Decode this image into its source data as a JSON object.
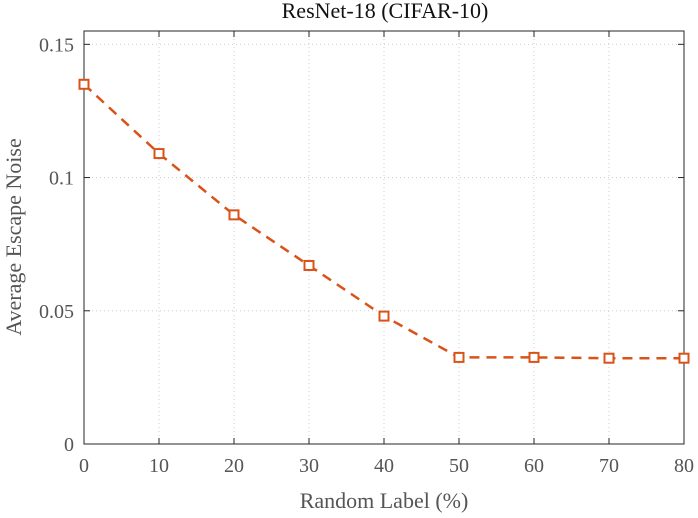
{
  "chart_data": {
    "type": "line",
    "title": "ResNet-18 (CIFAR-10)",
    "xlabel": "Random Label (%)",
    "ylabel": "Average Escape Noise",
    "xlim": [
      0,
      80
    ],
    "ylim": [
      0,
      0.155
    ],
    "xticks": [
      0,
      10,
      20,
      30,
      40,
      50,
      60,
      70,
      80
    ],
    "yticks": [
      0,
      0.05,
      0.1,
      0.15
    ],
    "xtick_labels": [
      "0",
      "10",
      "20",
      "30",
      "40",
      "50",
      "60",
      "70",
      "80"
    ],
    "ytick_labels": [
      "0",
      "0.05",
      "0.1",
      "0.15"
    ],
    "grid": true,
    "series": [
      {
        "name": "ResNet-18",
        "color": "#d95319",
        "line_style": "dashed",
        "marker": "square",
        "x": [
          0,
          10,
          20,
          30,
          40,
          50,
          60,
          70,
          80
        ],
        "y": [
          0.135,
          0.109,
          0.086,
          0.067,
          0.048,
          0.0325,
          0.0325,
          0.0322,
          0.0322
        ]
      }
    ]
  }
}
